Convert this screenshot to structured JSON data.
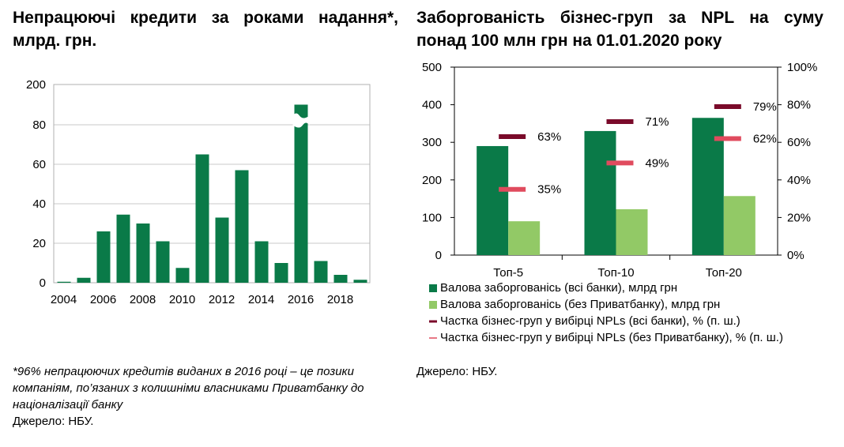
{
  "colors": {
    "dark_green": "#0a7a48",
    "light_green": "#92c966",
    "dark_red": "#7a0a2a",
    "pink": "#e04b5e",
    "grid": "#c8c8c8"
  },
  "left": {
    "title": "Непрацюючі кредити за роками надання*, млрд. грн.",
    "footnote": "*96% непрацюючих кредитів виданих в 2016 році – це позики компаніям, по’язаних з колишніми власниками Приватбанку до націоналізації банку",
    "source": "Джерело: НБУ."
  },
  "right": {
    "title": "Заборгованість бізнес-груп за NPL на суму понад 100 млн грн на 01.01.2020 року",
    "source": "Джерело: НБУ."
  },
  "chart_data": [
    {
      "type": "bar",
      "x": [
        2004,
        2005,
        2006,
        2007,
        2008,
        2009,
        2010,
        2011,
        2012,
        2013,
        2014,
        2015,
        2016,
        2017,
        2018,
        2019
      ],
      "values": [
        0.5,
        2.5,
        26,
        34.5,
        30,
        21,
        7.5,
        65,
        33,
        57,
        21,
        10,
        195,
        11,
        4,
        1.5
      ],
      "x_tick_labels": [
        "2004",
        "2006",
        "2008",
        "2010",
        "2012",
        "2014",
        "2016",
        "2018"
      ],
      "y_tick_labels": [
        "0",
        "20",
        "40",
        "60",
        "80",
        "200"
      ],
      "axis_break": {
        "from": 80,
        "to": 190
      },
      "ylim": [
        0,
        200
      ],
      "grid": true,
      "xlabel": "",
      "ylabel": ""
    },
    {
      "type": "bar",
      "categories": [
        "Топ-5",
        "Топ-10",
        "Топ-20"
      ],
      "series": [
        {
          "name": "Валова заборгованісь (всі банки), млрд грн",
          "values": [
            290,
            330,
            365
          ],
          "kind": "bar",
          "axis": "left"
        },
        {
          "name": "Валова заборгованісь (без Приватбанку), млрд грн",
          "values": [
            90,
            122,
            157
          ],
          "kind": "bar",
          "axis": "left"
        },
        {
          "name": "Частка бізнес-груп у вибірці NPLs (всі банки), % (п. ш.)",
          "values": [
            63,
            71,
            79
          ],
          "labels": [
            "63%",
            "71%",
            "79%"
          ],
          "kind": "marker",
          "axis": "right"
        },
        {
          "name": "Частка бізнес-груп у вибірці NPLs (без Приватбанку), % (п. ш.)",
          "values": [
            35,
            49,
            62
          ],
          "labels": [
            "35%",
            "49%",
            "62%"
          ],
          "kind": "marker",
          "axis": "right"
        }
      ],
      "ylim": [
        0,
        500
      ],
      "y2lim": [
        0,
        100
      ],
      "y_tick_labels": [
        "0",
        "100",
        "200",
        "300",
        "400",
        "500"
      ],
      "y2_tick_labels": [
        "0%",
        "20%",
        "40%",
        "60%",
        "80%",
        "100%"
      ],
      "grid": false,
      "legend": "bottom"
    }
  ]
}
